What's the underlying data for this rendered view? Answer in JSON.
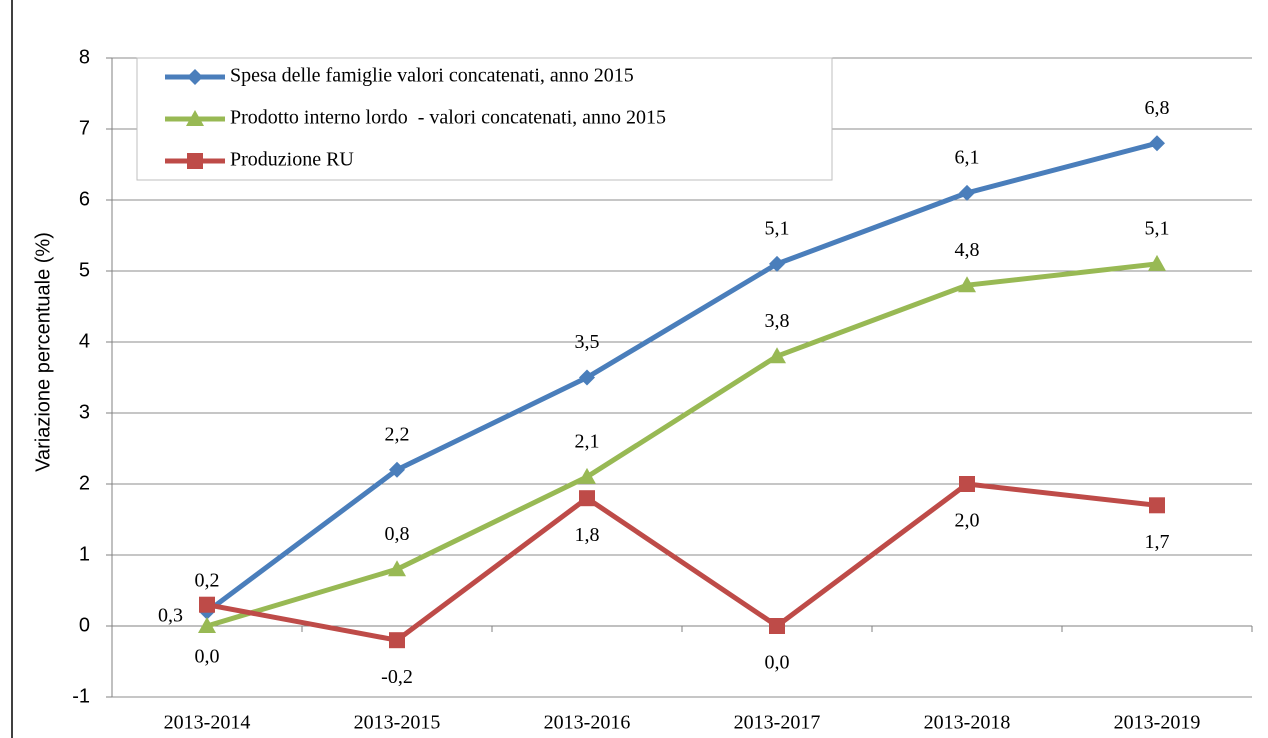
{
  "chart_data": {
    "type": "line",
    "y_label": "Variazione percentuale (%)",
    "categories": [
      "2013-2014",
      "2013-2015",
      "2013-2016",
      "2013-2017",
      "2013-2018",
      "2013-2019"
    ],
    "series": [
      {
        "name": "Spesa delle famiglie valori concatenati, anno 2015",
        "color": "#4a7ebb",
        "marker": "diamond",
        "values": [
          0.2,
          2.2,
          3.5,
          5.1,
          6.1,
          6.8
        ],
        "value_labels": [
          "0,2",
          "2,2",
          "3,5",
          "5,1",
          "6,1",
          "6,8"
        ]
      },
      {
        "name": "Prodotto interno lordo  - valori concatenati, anno 2015",
        "color": "#98b954",
        "marker": "triangle",
        "values": [
          0.0,
          0.8,
          2.1,
          3.8,
          4.8,
          5.1
        ],
        "value_labels": [
          "0,0",
          "0,8",
          "2,1",
          "3,8",
          "4,8",
          "5,1"
        ]
      },
      {
        "name": "Produzione RU",
        "color": "#be4b48",
        "marker": "square",
        "values": [
          0.3,
          -0.2,
          1.8,
          0.0,
          2.0,
          1.7
        ],
        "value_labels": [
          "0,3",
          "-0,2",
          "1,8",
          "0,0",
          "2,0",
          "1,7"
        ]
      }
    ],
    "ylim": [
      -1,
      8
    ],
    "yticks": [
      -1,
      0,
      1,
      2,
      3,
      4,
      5,
      6,
      7,
      8
    ],
    "grid": true,
    "legend": "upper left"
  }
}
